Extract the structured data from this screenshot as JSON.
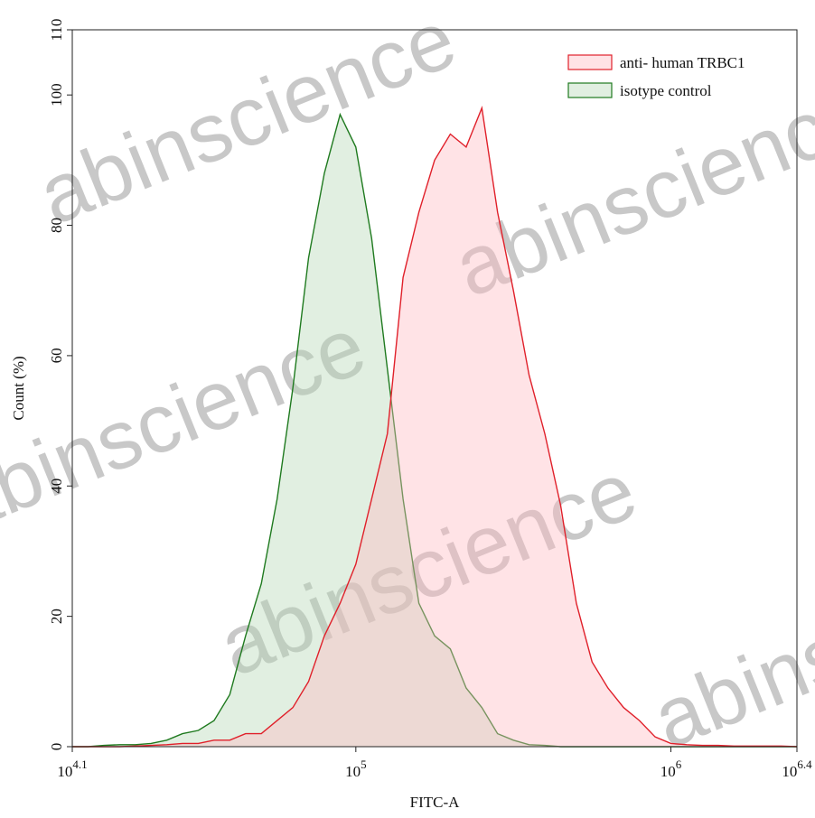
{
  "chart_data": {
    "type": "area",
    "x_label": "FITC-A",
    "y_label": "Count (%)",
    "watermark": "abinscience",
    "xscale": "log",
    "legend": "upper right",
    "xlim": [
      12589.25,
      2511886.43
    ],
    "ylim": [
      0,
      110
    ],
    "xticks": [
      {
        "value": 12589.25,
        "label": "10^4.1"
      },
      {
        "value": 100000,
        "label": "10^5"
      },
      {
        "value": 1000000,
        "label": "10^6"
      },
      {
        "value": 2511886.43,
        "label": "10^6.4"
      }
    ],
    "yticks": [
      0,
      20,
      40,
      60,
      80,
      100,
      110
    ],
    "x": [
      12589,
      14125,
      15849,
      17783,
      19953,
      22387,
      25119,
      28184,
      31623,
      35481,
      39811,
      44668,
      50119,
      56234,
      63096,
      70795,
      79433,
      89125,
      100000,
      112202,
      125893,
      141254,
      158489,
      177828,
      199526,
      223872,
      251189,
      281838,
      316228,
      354813,
      398107,
      446684,
      501187,
      562341,
      630957,
      707946,
      794328,
      891251,
      1000000,
      1122018,
      1258925,
      1412538,
      1584893,
      1778279,
      1995262,
      2238721,
      2511886
    ],
    "series": [
      {
        "name": "anti- human TRBC1",
        "color": "#e0202a",
        "fill": "#ffb8c0",
        "values": [
          0,
          0,
          0,
          0,
          0.1,
          0.2,
          0.3,
          0.5,
          0.5,
          1,
          1,
          2,
          2,
          4,
          6,
          10,
          17,
          22,
          28,
          38,
          48,
          72,
          82,
          90,
          94,
          92,
          98,
          82,
          70,
          57,
          48,
          37,
          22,
          13,
          9,
          6,
          4,
          1.5,
          0.5,
          0.3,
          0.2,
          0.2,
          0.1,
          0.1,
          0.1,
          0.1,
          0
        ]
      },
      {
        "name": "isotype control",
        "color": "#1f7a1f",
        "fill": "#b4d8b4",
        "values": [
          0,
          0,
          0.2,
          0.3,
          0.3,
          0.5,
          1,
          2,
          2.5,
          4,
          8,
          17,
          25,
          38,
          55,
          75,
          88,
          97,
          92,
          78,
          58,
          38,
          22,
          17,
          15,
          9,
          6,
          2,
          1,
          0.3,
          0.2,
          0,
          0,
          0,
          0,
          0,
          0,
          0,
          0,
          0,
          0,
          0,
          0,
          0,
          0,
          0,
          0
        ]
      }
    ]
  }
}
